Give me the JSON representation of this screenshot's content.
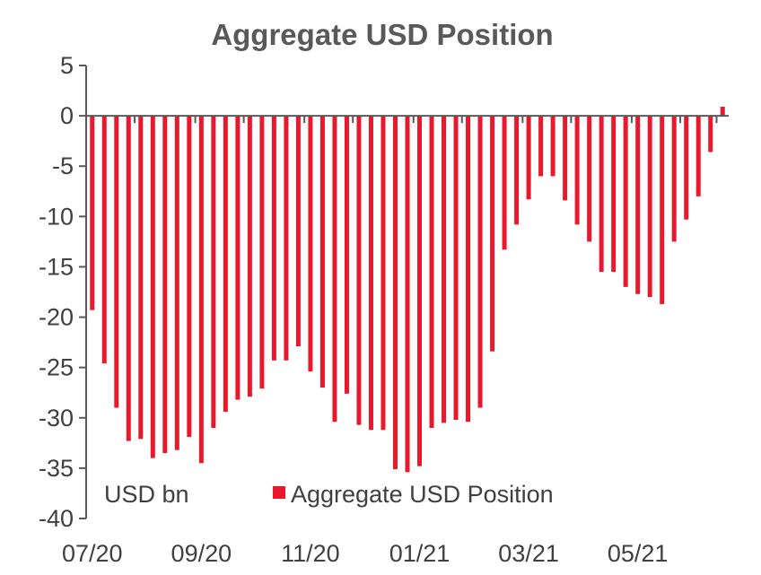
{
  "chart_data": {
    "type": "bar",
    "title": "Aggregate USD Position",
    "unit_label": "USD bn",
    "ylim": [
      -40,
      5
    ],
    "yticks": [
      5,
      0,
      -5,
      -10,
      -15,
      -20,
      -25,
      -30,
      -35,
      -40
    ],
    "xtick_labels": [
      "07/20",
      "09/20",
      "11/20",
      "01/21",
      "03/21",
      "05/21"
    ],
    "xtick_bar_index": [
      0,
      9,
      18,
      27,
      36,
      45
    ],
    "legend": {
      "label": "Aggregate USD Position",
      "position": "bottom-center"
    },
    "series": [
      {
        "name": "Aggregate USD Position",
        "color": "#E8192C",
        "values": [
          -19.3,
          -24.6,
          -29.0,
          -32.3,
          -32.1,
          -34.0,
          -33.5,
          -33.2,
          -31.9,
          -34.5,
          -31.0,
          -29.4,
          -28.2,
          -27.9,
          -27.1,
          -24.3,
          -24.3,
          -22.9,
          -25.4,
          -27.0,
          -30.4,
          -27.6,
          -30.7,
          -31.2,
          -31.2,
          -35.1,
          -35.4,
          -34.8,
          -31.0,
          -30.5,
          -30.2,
          -30.4,
          -29.0,
          -23.4,
          -13.3,
          -10.8,
          -8.3,
          -6.0,
          -6.0,
          -8.4,
          -10.8,
          -12.5,
          -15.5,
          -15.5,
          -17.0,
          -17.7,
          -18.0,
          -18.7,
          -12.5,
          -10.3,
          -8.0,
          -3.6,
          0.9
        ]
      }
    ]
  }
}
